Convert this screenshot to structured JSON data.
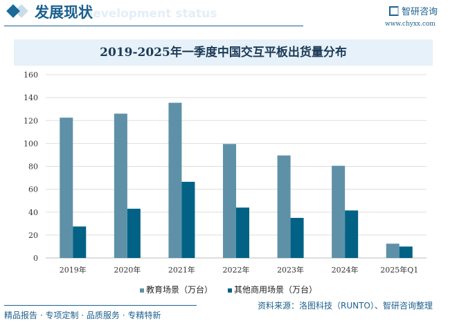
{
  "header": {
    "title": "发展现状",
    "subtitle": "Development status",
    "logo": "智研咨询",
    "url": "www.chyxx.com"
  },
  "chart_data": {
    "type": "bar",
    "title": "2019-2025年一季度中国交互平板出货量分布",
    "categories": [
      "2019年",
      "2020年",
      "2021年",
      "2022年",
      "2023年",
      "2024年",
      "2025年Q1"
    ],
    "series": [
      {
        "name": "教育场景（万台）",
        "color": "#5e91a8",
        "values": [
          122.5,
          126,
          135.5,
          99.5,
          89.5,
          80.5,
          12.5
        ]
      },
      {
        "name": "其他商用场景（万台）",
        "color": "#026285",
        "values": [
          27.5,
          43,
          66.5,
          44,
          35,
          41.5,
          10
        ]
      }
    ],
    "ylim": [
      0,
      160
    ],
    "yticks": [
      "0",
      "20",
      "40",
      "60",
      "80",
      "100",
      "120",
      "140",
      "160"
    ],
    "grid": true,
    "legend": "bottom"
  },
  "footer": {
    "left": "精品报告 · 专项定制 · 品质服务 · 专精特新",
    "source": "资料来源：洛图科技（RUNTO）、智研咨询整理"
  }
}
